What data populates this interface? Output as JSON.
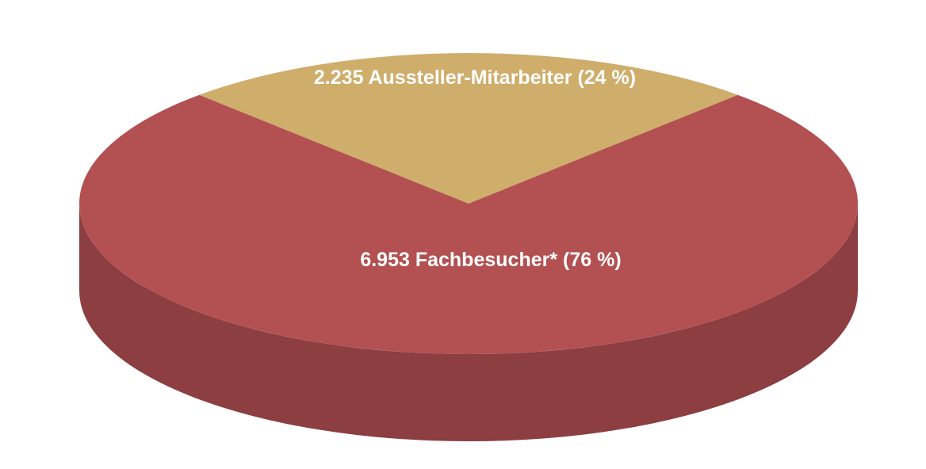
{
  "chart_data": {
    "type": "pie",
    "values": [
      2235,
      6953
    ],
    "value_labels": [
      "2.235 Aussteller-Mitarbeiter (24 %)",
      "6.953 Fachbesucher* (76 %)"
    ],
    "colors": [
      "#cfad6b",
      "#b35052"
    ]
  }
}
